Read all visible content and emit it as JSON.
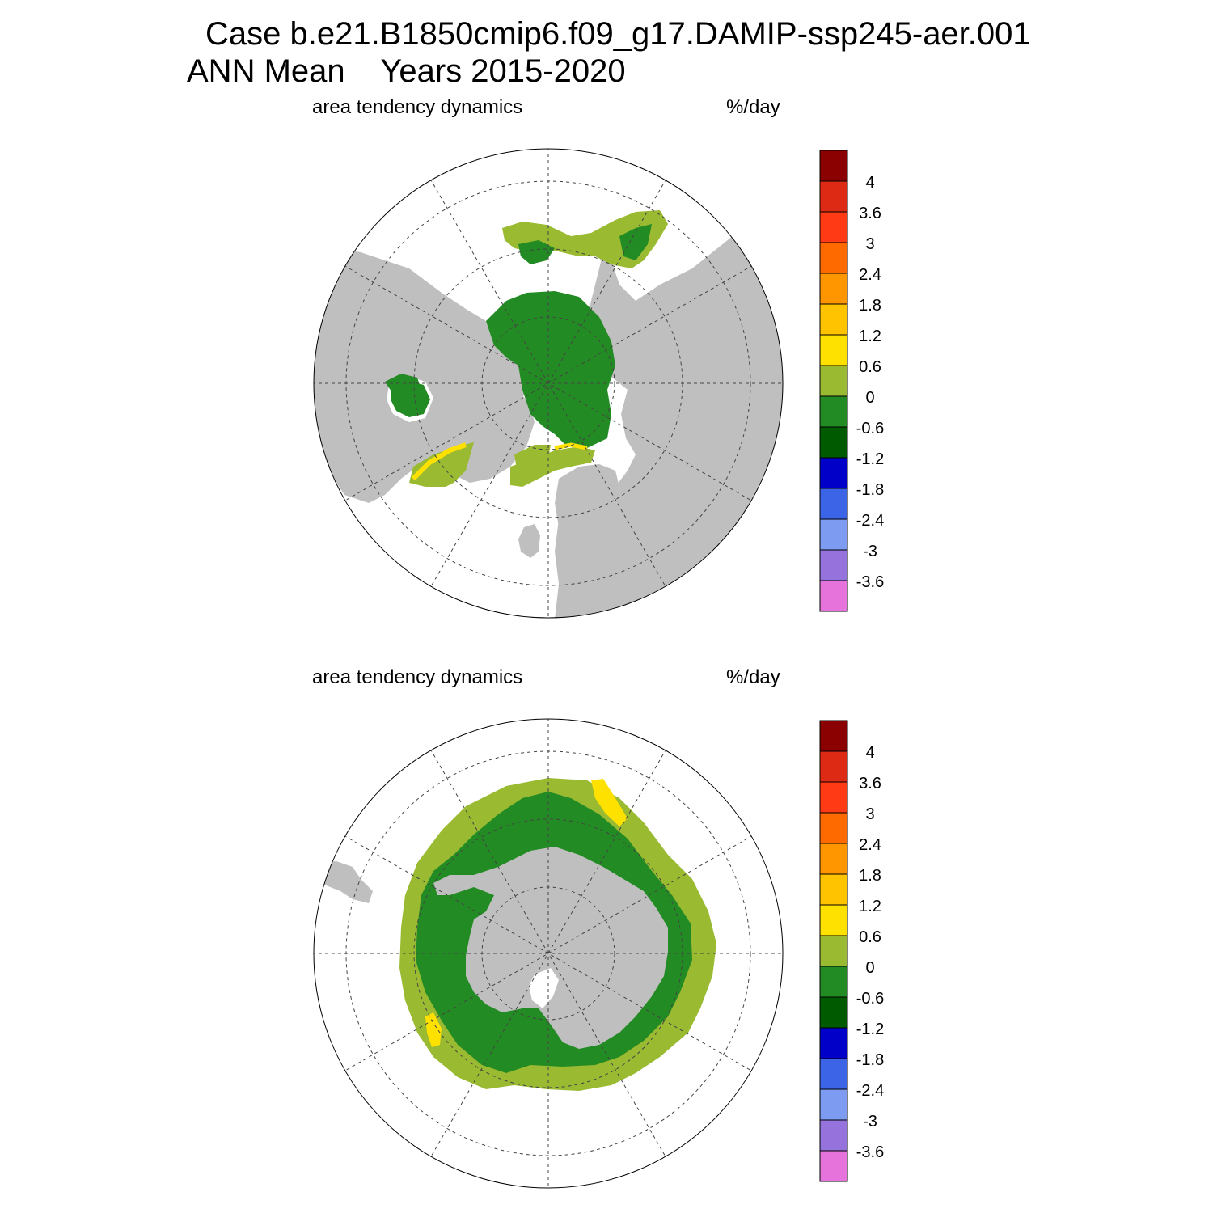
{
  "header": {
    "case_line": "Case b.e21.B1850cmip6.f09_g17.DAMIP-ssp245-aer.001",
    "period_label": "ANN Mean",
    "years_label": "Years 2015-2020"
  },
  "panels": [
    {
      "id": "north",
      "hemisphere": "Arctic (north polar stereographic)",
      "variable_label": "area tendency dynamics",
      "units_label": "%/day"
    },
    {
      "id": "south",
      "hemisphere": "Antarctic (south polar stereographic)",
      "variable_label": "area tendency dynamics",
      "units_label": "%/day"
    }
  ],
  "colorbar": {
    "levels": [
      "4",
      "3.6",
      "3",
      "2.4",
      "1.8",
      "1.2",
      "0.6",
      "0",
      "-0.6",
      "-1.2",
      "-1.8",
      "-2.4",
      "-3",
      "-3.6"
    ],
    "colors": [
      "#8b0000",
      "#dc2a14",
      "#ff3a14",
      "#ff6a00",
      "#ff9600",
      "#ffc300",
      "#ffe100",
      "#9aba32",
      "#238b23",
      "#005a00",
      "#0000c8",
      "#3c64e6",
      "#7d9bf0",
      "#9673dc",
      "#e673dc"
    ]
  },
  "map_colors": {
    "land": "#bfbfbf",
    "ocean": "#ffffff",
    "grid": "#444444"
  }
}
